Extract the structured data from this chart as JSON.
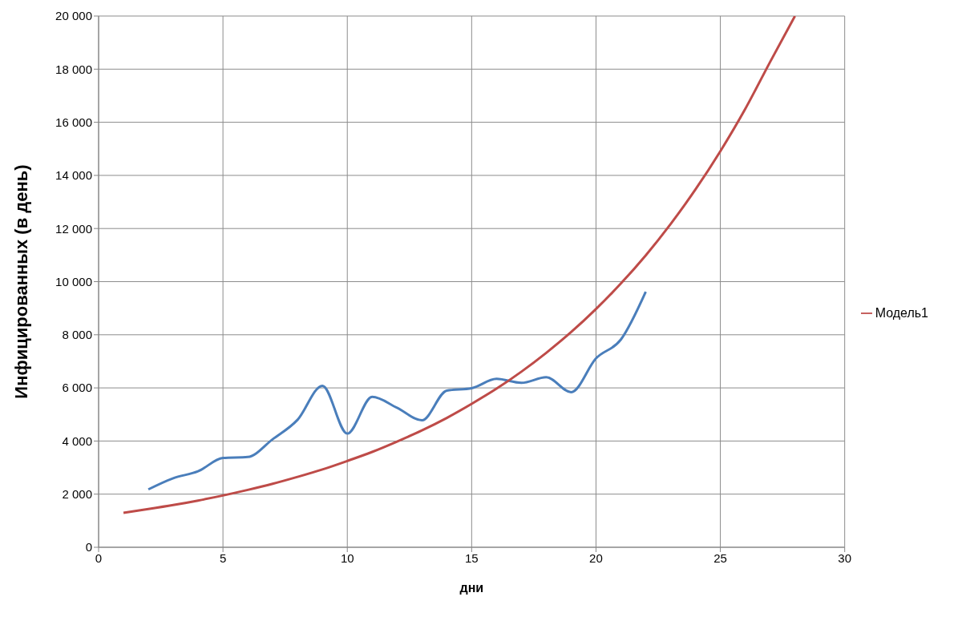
{
  "chart_data": {
    "type": "line",
    "xlabel": "дни",
    "ylabel": "Инфицированных (в день)",
    "xlim": [
      0,
      30
    ],
    "xticks": [
      0,
      5,
      10,
      15,
      20,
      25,
      30
    ],
    "ylim": [
      0,
      20000
    ],
    "yticks": [
      {
        "value": 0,
        "label": "0"
      },
      {
        "value": 2000,
        "label": "2 000"
      },
      {
        "value": 4000,
        "label": "4 000"
      },
      {
        "value": 6000,
        "label": "6 000"
      },
      {
        "value": 8000,
        "label": "8 000"
      },
      {
        "value": 10000,
        "label": "10 000"
      },
      {
        "value": 12000,
        "label": "12 000"
      },
      {
        "value": 14000,
        "label": "14 000"
      },
      {
        "value": 16000,
        "label": "16 000"
      },
      {
        "value": 18000,
        "label": "18 000"
      },
      {
        "value": 20000,
        "label": "20 000"
      }
    ],
    "grid": true,
    "legend": "right",
    "marker": "none",
    "series": [
      {
        "color": "#4a7ebb",
        "x": [
          2,
          3,
          4,
          5,
          6,
          7,
          8,
          9,
          10,
          11,
          12,
          13,
          14,
          15,
          16,
          17,
          18,
          19,
          20,
          21,
          22
        ],
        "values": [
          2180,
          2600,
          2860,
          3360,
          3400,
          4070,
          4800,
          6080,
          4280,
          5660,
          5250,
          4780,
          5900,
          5990,
          6340,
          6190,
          6400,
          5840,
          7110,
          7820,
          9620
        ]
      },
      {
        "name": "Модель1",
        "color": "#be4b48",
        "x": [
          1,
          2,
          3,
          4,
          5,
          6,
          7,
          8,
          9,
          10,
          11,
          12,
          13,
          14,
          15,
          16,
          17,
          18,
          19,
          20,
          21,
          22,
          23,
          24,
          25,
          26,
          27,
          28
        ],
        "values": [
          1300,
          1440,
          1590,
          1760,
          1950,
          2160,
          2390,
          2650,
          2930,
          3250,
          3590,
          3980,
          4400,
          4870,
          5400,
          5970,
          6610,
          7320,
          8100,
          8970,
          9930,
          10990,
          12170,
          13470,
          14910,
          16500,
          18270,
          20000
        ]
      }
    ]
  }
}
